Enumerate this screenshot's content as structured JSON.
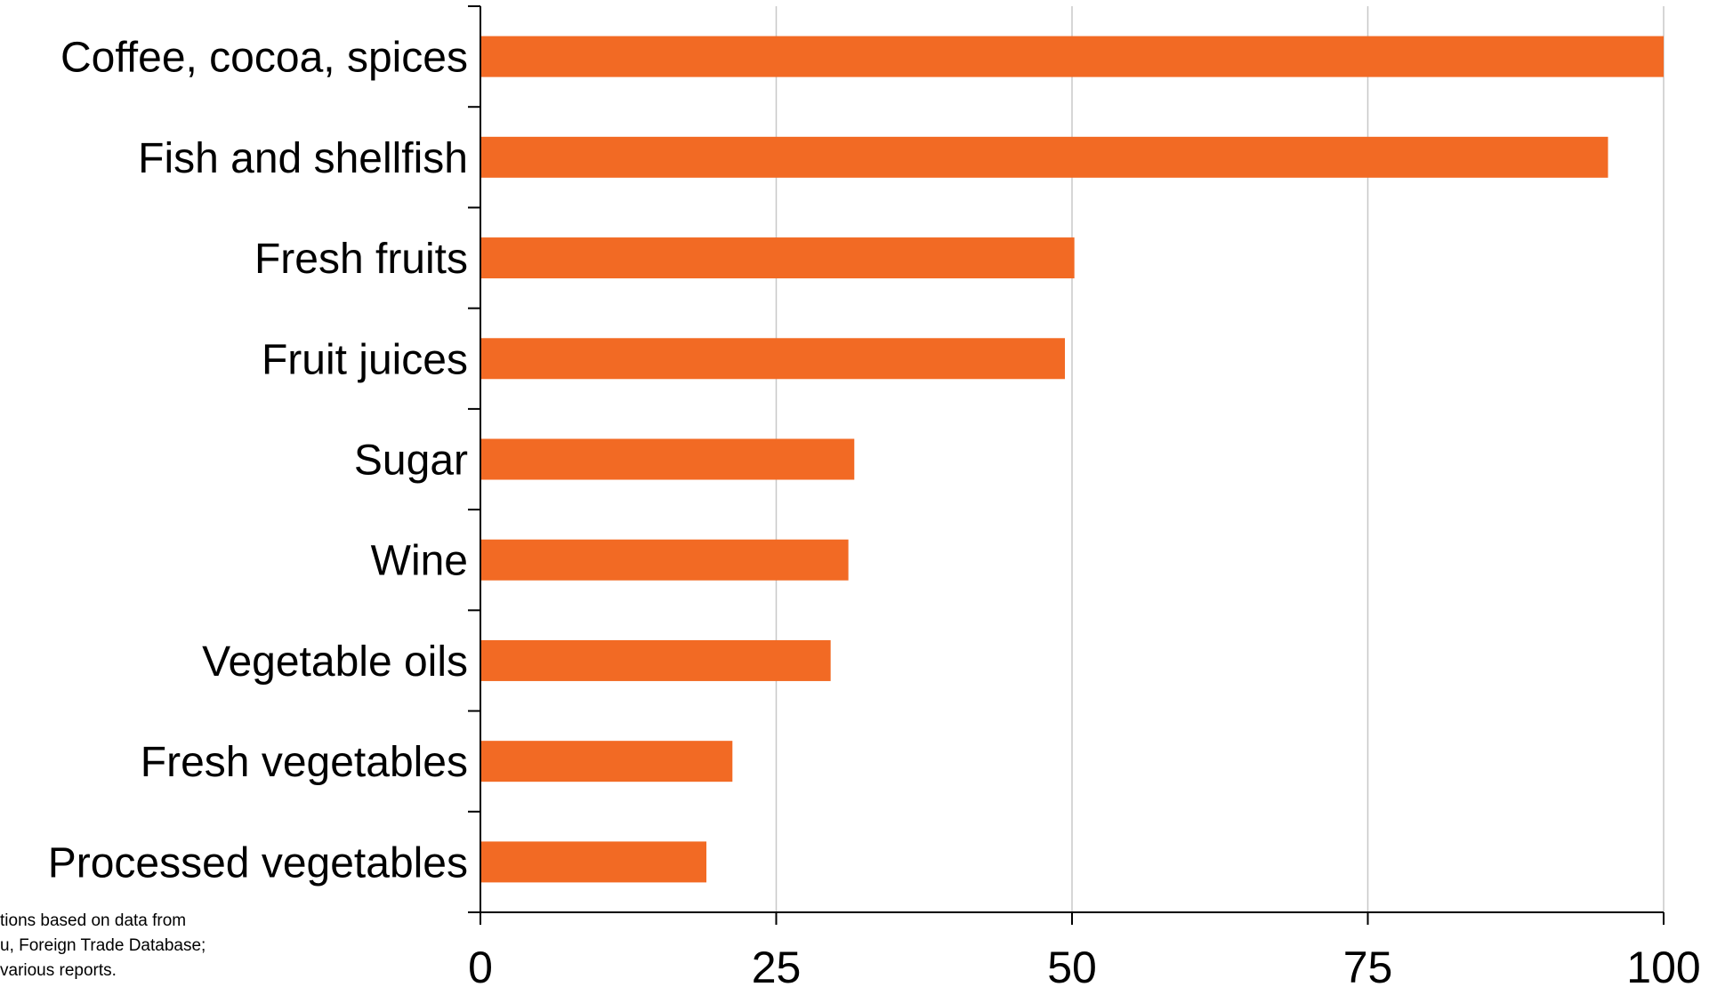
{
  "chart_data": {
    "type": "bar",
    "orientation": "horizontal",
    "categories": [
      "Coffee, cocoa, spices",
      "Fish and shellfish",
      "Fresh fruits",
      "Fruit juices",
      "Sugar",
      "Wine",
      "Vegetable oils",
      "Fresh vegetables",
      "Processed vegetables"
    ],
    "values": [
      100,
      95.3,
      50.2,
      49.4,
      31.6,
      31.1,
      29.6,
      21.3,
      19.1
    ],
    "xlim": [
      0,
      100
    ],
    "xticks": [
      0,
      25,
      50,
      75,
      100
    ],
    "xtick_labels": [
      "0",
      "25",
      "50",
      "75",
      "100"
    ],
    "title": "",
    "xlabel": "",
    "ylabel": "",
    "grid": "vertical",
    "legend": "none",
    "bar_color": "#f26a24",
    "grid_color": "#c8c8c8",
    "axis_color": "#000000"
  },
  "source_note": {
    "lines": [
      "tions based on data from",
      "u, Foreign Trade Database;",
      "various reports."
    ]
  }
}
